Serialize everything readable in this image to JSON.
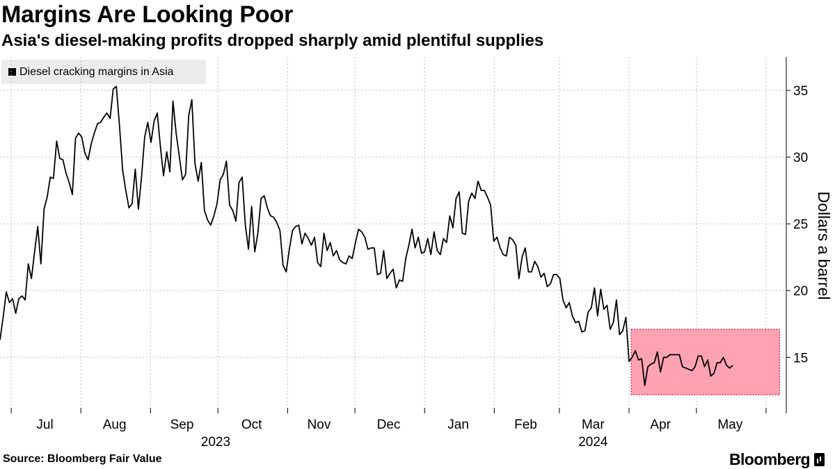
{
  "header": {
    "title": "Margins Are Looking Poor",
    "subtitle": "Asia's diesel-making profits dropped sharply amid plentiful supplies"
  },
  "footer": {
    "source": "Source: Bloomberg Fair Value",
    "brand": "Bloomberg"
  },
  "colors": {
    "line": "#000000",
    "highlight_fill": "#ffa3b3",
    "highlight_border": "#e02a4a",
    "grid": "#bdbdbd"
  },
  "chart_data": {
    "type": "line",
    "title": "Margins Are Looking Poor",
    "subtitle": "Asia's diesel-making profits dropped sharply amid plentiful supplies",
    "legend": [
      "Diesel cracking margins in Asia"
    ],
    "legend_placement": "top-left",
    "ylabel": "Dollars a barrel",
    "ylim": [
      10.8,
      37.5
    ],
    "y_ticks": [
      15,
      20,
      25,
      30,
      35
    ],
    "y_axis_side": "right",
    "x_range": [
      "2023-06-26",
      "2024-06-10"
    ],
    "month_ticks": [
      "2023-07-01",
      "2023-08-01",
      "2023-09-01",
      "2023-10-01",
      "2023-11-01",
      "2023-12-01",
      "2024-01-01",
      "2024-02-01",
      "2024-03-01",
      "2024-04-01",
      "2024-05-01",
      "2024-06-01"
    ],
    "month_labels": [
      {
        "label": "Jul",
        "mid": "2023-07-16"
      },
      {
        "label": "Aug",
        "mid": "2023-08-16"
      },
      {
        "label": "Sep",
        "mid": "2023-09-15"
      },
      {
        "label": "Oct",
        "mid": "2023-10-16"
      },
      {
        "label": "Nov",
        "mid": "2023-11-15"
      },
      {
        "label": "Dec",
        "mid": "2023-12-16"
      },
      {
        "label": "Jan",
        "mid": "2024-01-16"
      },
      {
        "label": "Feb",
        "mid": "2024-02-15"
      },
      {
        "label": "Mar",
        "mid": "2024-03-16"
      },
      {
        "label": "Apr",
        "mid": "2024-04-15"
      },
      {
        "label": "May",
        "mid": "2024-05-16"
      }
    ],
    "year_labels": [
      {
        "label": "2023",
        "mid": "2023-09-30"
      },
      {
        "label": "2024",
        "mid": "2024-03-16"
      }
    ],
    "grid": true,
    "highlight": {
      "x0": "2024-04-02",
      "x1": "2024-06-07",
      "y0": 12.2,
      "y1": 17.1
    },
    "series": [
      {
        "name": "Diesel cracking margins in Asia",
        "start": "2023-06-26",
        "step_days": 1.4,
        "values": [
          16.3,
          18.0,
          19.9,
          19.1,
          19.4,
          18.3,
          19.4,
          19.6,
          19.3,
          22.0,
          20.9,
          22.9,
          24.8,
          22.0,
          26.1,
          27.0,
          28.5,
          28.4,
          31.2,
          29.9,
          29.8,
          28.8,
          28.1,
          27.2,
          31.4,
          31.8,
          31.5,
          30.3,
          29.8,
          31.0,
          31.8,
          32.5,
          32.6,
          33.0,
          33.3,
          32.9,
          35.1,
          35.3,
          32.3,
          29.0,
          27.5,
          26.2,
          26.5,
          29.1,
          26.1,
          28.5,
          31.5,
          32.6,
          31.1,
          32.7,
          33.3,
          30.8,
          28.6,
          30.4,
          28.9,
          34.2,
          31.8,
          30.1,
          28.3,
          28.7,
          33.1,
          34.3,
          29.5,
          28.2,
          29.6,
          26.0,
          25.3,
          24.9,
          25.6,
          26.5,
          28.3,
          28.7,
          29.7,
          26.4,
          26.0,
          25.2,
          28.1,
          28.5,
          24.9,
          23.1,
          26.3,
          22.9,
          24.3,
          26.9,
          27.1,
          26.2,
          25.6,
          25.5,
          25.1,
          24.5,
          21.9,
          21.4,
          23.1,
          24.5,
          24.8,
          24.9,
          23.5,
          24.3,
          23.9,
          23.4,
          24.0,
          22.1,
          21.8,
          24.3,
          23.0,
          23.6,
          22.6,
          23.0,
          22.3,
          22.1,
          22.0,
          22.6,
          22.4,
          23.6,
          24.6,
          24.4,
          24.0,
          23.1,
          23.2,
          23.2,
          21.2,
          21.3,
          23.0,
          20.9,
          21.3,
          21.6,
          20.2,
          20.8,
          20.7,
          22.4,
          23.4,
          24.6,
          23.2,
          24.0,
          22.8,
          22.9,
          23.9,
          22.7,
          24.4,
          23.0,
          22.7,
          23.9,
          23.6,
          25.6,
          24.7,
          26.9,
          27.4,
          24.3,
          24.2,
          26.7,
          27.3,
          26.9,
          28.2,
          27.5,
          27.5,
          27.0,
          26.4,
          23.7,
          24.0,
          23.2,
          22.7,
          22.6,
          24.0,
          23.8,
          23.4,
          20.9,
          22.5,
          23.2,
          21.4,
          21.4,
          22.2,
          21.8,
          21.0,
          21.3,
          20.3,
          20.5,
          21.2,
          21.2,
          20.9,
          19.3,
          18.7,
          19.1,
          18.1,
          17.6,
          17.7,
          16.9,
          17.0,
          18.4,
          18.7,
          20.2,
          18.1,
          20.1,
          18.6,
          18.9,
          17.1,
          17.6,
          19.3,
          16.7,
          17.0,
          18.0,
          14.7,
          15.0,
          15.5,
          14.8,
          14.9,
          12.9,
          14.3,
          14.5,
          14.6,
          15.4,
          13.9,
          15.0,
          15.0,
          15.2,
          15.2,
          15.2,
          15.2,
          14.3,
          14.2,
          14.1,
          14.0,
          14.3,
          15.1,
          15.1,
          14.3,
          14.8,
          13.6,
          13.8,
          14.6,
          14.6,
          15.0,
          14.4,
          14.2,
          14.4
        ]
      }
    ]
  }
}
